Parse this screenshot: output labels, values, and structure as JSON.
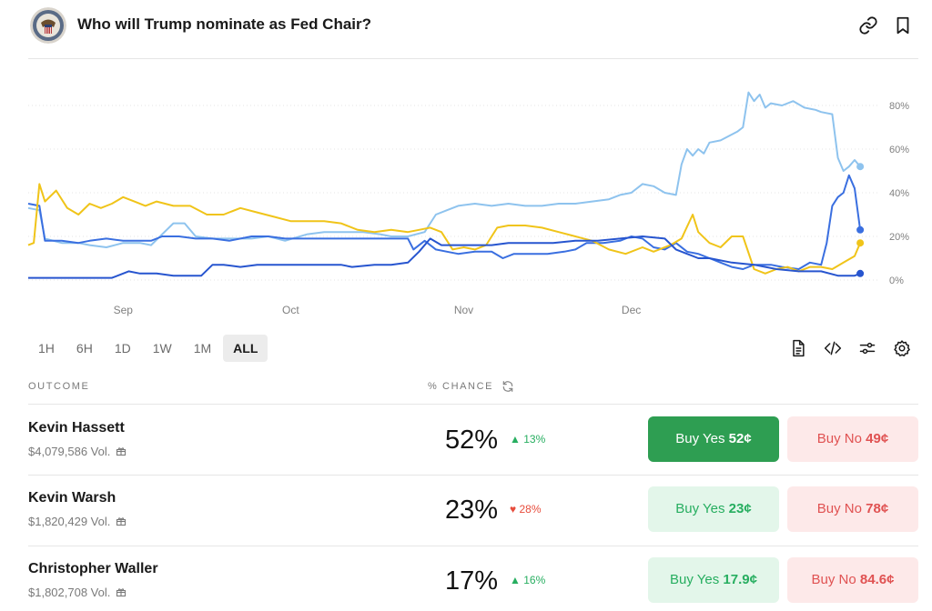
{
  "header": {
    "title": "Who will Trump nominate as Fed Chair?",
    "icons": {
      "logo": "federal-reserve-seal",
      "link": "link-icon",
      "bookmark": "bookmark-icon"
    }
  },
  "chart_data": {
    "type": "line",
    "title": "",
    "xlabel": "",
    "ylabel": "",
    "x_tick_labels": [
      "Sep",
      "Oct",
      "Nov",
      "Dec"
    ],
    "y_tick_labels": [
      "0%",
      "20%",
      "40%",
      "60%",
      "80%"
    ],
    "ylim": [
      0,
      90
    ],
    "x_units": "days since Aug 15",
    "grid": true,
    "legend": "none",
    "series": [
      {
        "name": "Kevin Hassett",
        "color": "#8ec3ee",
        "points": [
          [
            0,
            33
          ],
          [
            2,
            32
          ],
          [
            3,
            19
          ],
          [
            6,
            17
          ],
          [
            9,
            17
          ],
          [
            11,
            16
          ],
          [
            14,
            15
          ],
          [
            17,
            17
          ],
          [
            20,
            17
          ],
          [
            22,
            16
          ],
          [
            26,
            26
          ],
          [
            28,
            26
          ],
          [
            30,
            20
          ],
          [
            33,
            19
          ],
          [
            36,
            19
          ],
          [
            40,
            19
          ],
          [
            43,
            20
          ],
          [
            46,
            18
          ],
          [
            50,
            21
          ],
          [
            53,
            22
          ],
          [
            57,
            22
          ],
          [
            60,
            22
          ],
          [
            63,
            21
          ],
          [
            65,
            20
          ],
          [
            68,
            20
          ],
          [
            71,
            22
          ],
          [
            72,
            26
          ],
          [
            73,
            30
          ],
          [
            75,
            32
          ],
          [
            77,
            34
          ],
          [
            80,
            35
          ],
          [
            83,
            34
          ],
          [
            86,
            35
          ],
          [
            89,
            34
          ],
          [
            92,
            34
          ],
          [
            95,
            35
          ],
          [
            98,
            35
          ],
          [
            101,
            36
          ],
          [
            104,
            37
          ],
          [
            106,
            39
          ],
          [
            108,
            40
          ],
          [
            110,
            44
          ],
          [
            112,
            43
          ],
          [
            114,
            40
          ],
          [
            116,
            39
          ],
          [
            117,
            53
          ],
          [
            118,
            60
          ],
          [
            119,
            57
          ],
          [
            120,
            60
          ],
          [
            121,
            58
          ],
          [
            122,
            63
          ],
          [
            124,
            64
          ],
          [
            127,
            68
          ],
          [
            128,
            70
          ],
          [
            129,
            86
          ],
          [
            130,
            82
          ],
          [
            131,
            85
          ],
          [
            132,
            79
          ],
          [
            133,
            81
          ],
          [
            135,
            80
          ],
          [
            137,
            82
          ],
          [
            139,
            79
          ],
          [
            141,
            78
          ],
          [
            142,
            77
          ],
          [
            144,
            76
          ],
          [
            145,
            56
          ],
          [
            146,
            50
          ],
          [
            147,
            52
          ],
          [
            148,
            55
          ],
          [
            149,
            52
          ]
        ]
      },
      {
        "name": "Kevin Warsh",
        "color": "#3a6fe0",
        "points": [
          [
            0,
            35
          ],
          [
            2,
            34
          ],
          [
            3,
            18
          ],
          [
            6,
            18
          ],
          [
            9,
            17
          ],
          [
            11,
            18
          ],
          [
            14,
            19
          ],
          [
            17,
            18
          ],
          [
            20,
            18
          ],
          [
            22,
            18
          ],
          [
            24,
            20
          ],
          [
            27,
            20
          ],
          [
            30,
            19
          ],
          [
            33,
            19
          ],
          [
            36,
            18
          ],
          [
            40,
            20
          ],
          [
            43,
            20
          ],
          [
            46,
            19
          ],
          [
            50,
            19
          ],
          [
            53,
            19
          ],
          [
            57,
            19
          ],
          [
            60,
            19
          ],
          [
            63,
            19
          ],
          [
            66,
            19
          ],
          [
            68,
            19
          ],
          [
            69,
            14
          ],
          [
            71,
            18
          ],
          [
            73,
            14
          ],
          [
            75,
            13
          ],
          [
            77,
            12
          ],
          [
            80,
            13
          ],
          [
            83,
            13
          ],
          [
            85,
            10
          ],
          [
            87,
            12
          ],
          [
            90,
            12
          ],
          [
            93,
            12
          ],
          [
            96,
            13
          ],
          [
            98,
            14
          ],
          [
            100,
            17
          ],
          [
            103,
            17
          ],
          [
            106,
            18
          ],
          [
            108,
            20
          ],
          [
            110,
            19
          ],
          [
            112,
            15
          ],
          [
            114,
            14
          ],
          [
            116,
            17
          ],
          [
            118,
            13
          ],
          [
            120,
            12
          ],
          [
            122,
            10
          ],
          [
            124,
            8
          ],
          [
            126,
            6
          ],
          [
            128,
            5
          ],
          [
            130,
            7
          ],
          [
            133,
            7
          ],
          [
            135,
            6
          ],
          [
            138,
            5
          ],
          [
            140,
            8
          ],
          [
            142,
            7
          ],
          [
            143,
            17
          ],
          [
            144,
            34
          ],
          [
            145,
            38
          ],
          [
            146,
            40
          ],
          [
            147,
            48
          ],
          [
            148,
            42
          ],
          [
            149,
            23
          ]
        ]
      },
      {
        "name": "Christopher Waller",
        "color": "#f0c419",
        "points": [
          [
            0,
            16
          ],
          [
            1,
            17
          ],
          [
            2,
            44
          ],
          [
            3,
            36
          ],
          [
            5,
            41
          ],
          [
            7,
            33
          ],
          [
            9,
            30
          ],
          [
            11,
            35
          ],
          [
            13,
            33
          ],
          [
            15,
            35
          ],
          [
            17,
            38
          ],
          [
            19,
            36
          ],
          [
            21,
            34
          ],
          [
            23,
            36
          ],
          [
            26,
            34
          ],
          [
            29,
            34
          ],
          [
            32,
            30
          ],
          [
            35,
            30
          ],
          [
            38,
            33
          ],
          [
            41,
            31
          ],
          [
            44,
            29
          ],
          [
            47,
            27
          ],
          [
            50,
            27
          ],
          [
            53,
            27
          ],
          [
            56,
            26
          ],
          [
            59,
            23
          ],
          [
            62,
            22
          ],
          [
            65,
            23
          ],
          [
            68,
            22
          ],
          [
            70,
            23
          ],
          [
            72,
            24
          ],
          [
            74,
            22
          ],
          [
            76,
            14
          ],
          [
            78,
            15
          ],
          [
            80,
            14
          ],
          [
            82,
            16
          ],
          [
            84,
            24
          ],
          [
            86,
            25
          ],
          [
            89,
            25
          ],
          [
            92,
            24
          ],
          [
            95,
            22
          ],
          [
            98,
            20
          ],
          [
            101,
            18
          ],
          [
            104,
            14
          ],
          [
            107,
            12
          ],
          [
            110,
            15
          ],
          [
            112,
            13
          ],
          [
            115,
            16
          ],
          [
            117,
            19
          ],
          [
            119,
            30
          ],
          [
            120,
            22
          ],
          [
            122,
            17
          ],
          [
            124,
            15
          ],
          [
            126,
            20
          ],
          [
            128,
            20
          ],
          [
            130,
            5
          ],
          [
            132,
            3
          ],
          [
            134,
            5
          ],
          [
            136,
            6
          ],
          [
            138,
            4
          ],
          [
            140,
            6
          ],
          [
            142,
            6
          ],
          [
            144,
            5
          ],
          [
            146,
            8
          ],
          [
            148,
            11
          ],
          [
            149,
            17
          ]
        ]
      },
      {
        "name": "",
        "color": "#2755cf",
        "points": [
          [
            0,
            1
          ],
          [
            5,
            1
          ],
          [
            10,
            1
          ],
          [
            15,
            1
          ],
          [
            18,
            4
          ],
          [
            20,
            3
          ],
          [
            23,
            3
          ],
          [
            26,
            2
          ],
          [
            29,
            2
          ],
          [
            31,
            2
          ],
          [
            33,
            7
          ],
          [
            35,
            7
          ],
          [
            38,
            6
          ],
          [
            41,
            7
          ],
          [
            44,
            7
          ],
          [
            47,
            7
          ],
          [
            50,
            7
          ],
          [
            53,
            7
          ],
          [
            56,
            7
          ],
          [
            58,
            6
          ],
          [
            62,
            7
          ],
          [
            65,
            7
          ],
          [
            68,
            8
          ],
          [
            70,
            13
          ],
          [
            72,
            19
          ],
          [
            74,
            16
          ],
          [
            77,
            16
          ],
          [
            80,
            16
          ],
          [
            83,
            16
          ],
          [
            86,
            17
          ],
          [
            90,
            17
          ],
          [
            94,
            17
          ],
          [
            98,
            18
          ],
          [
            102,
            18
          ],
          [
            106,
            19
          ],
          [
            110,
            20
          ],
          [
            114,
            19
          ],
          [
            116,
            14
          ],
          [
            118,
            12
          ],
          [
            120,
            10
          ],
          [
            122,
            10
          ],
          [
            126,
            8
          ],
          [
            130,
            7
          ],
          [
            134,
            5
          ],
          [
            138,
            4
          ],
          [
            142,
            4
          ],
          [
            145,
            2
          ],
          [
            147,
            2
          ],
          [
            148,
            2
          ],
          [
            149,
            3
          ]
        ]
      }
    ]
  },
  "time_ranges": [
    "1H",
    "6H",
    "1D",
    "1W",
    "1M",
    "ALL"
  ],
  "active_range": "ALL",
  "tools": [
    "document-icon",
    "code-embed-icon",
    "sliders-icon",
    "gear-icon"
  ],
  "table": {
    "col_outcome": "OUTCOME",
    "col_chance": "% CHANCE",
    "rows": [
      {
        "name": "Kevin Hassett",
        "volume": "$4,079,586 Vol.",
        "chance": "52%",
        "change": "13%",
        "direction": "up",
        "yes_label": "Buy Yes",
        "yes_price": "52¢",
        "no_label": "Buy No",
        "no_price": "49¢"
      },
      {
        "name": "Kevin Warsh",
        "volume": "$1,820,429 Vol.",
        "chance": "23%",
        "change": "28%",
        "direction": "down",
        "yes_label": "Buy Yes",
        "yes_price": "23¢",
        "no_label": "Buy No",
        "no_price": "78¢"
      },
      {
        "name": "Christopher Waller",
        "volume": "$1,802,708 Vol.",
        "chance": "17%",
        "change": "16%",
        "direction": "up",
        "yes_label": "Buy Yes",
        "yes_price": "17.9¢",
        "no_label": "Buy No",
        "no_price": "84.6¢"
      }
    ]
  }
}
